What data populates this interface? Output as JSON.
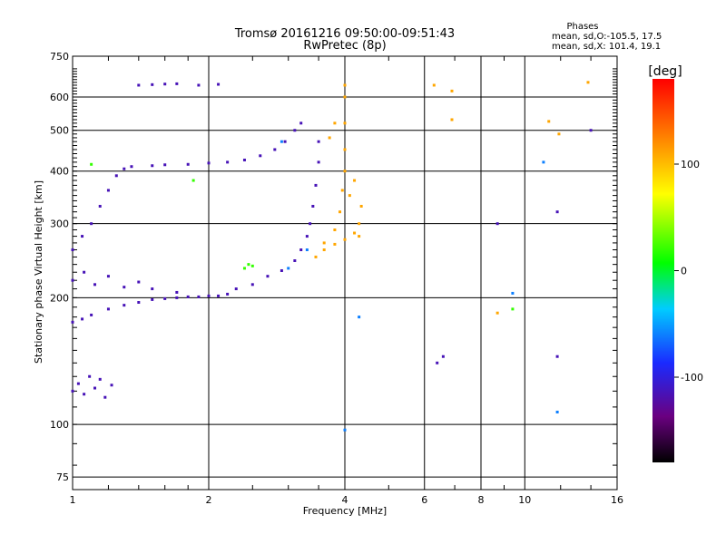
{
  "chart_data": {
    "type": "scatter",
    "title": "Tromsø 20161216 09:50:00-09:51:43",
    "subtitle": "RwPretec (8p)",
    "xlabel": "Frequency [MHz]",
    "ylabel": "Stationary phase Virtual Height [km]",
    "xscale": "log",
    "yscale": "log",
    "xlim": [
      1,
      16
    ],
    "ylim": [
      70,
      750
    ],
    "x_ticks": [
      1,
      2,
      4,
      6,
      8,
      10,
      16
    ],
    "y_ticks": [
      75,
      100,
      200,
      300,
      400,
      500,
      600,
      750
    ],
    "grid": true,
    "legend": {
      "title": "Phases",
      "lines": [
        "mean, sd,O:-105.5, 17.5",
        "mean, sd,X: 101.4, 19.1"
      ]
    },
    "colorbar": {
      "label": "[deg]",
      "range": [
        -180,
        180
      ],
      "ticks": [
        100,
        0,
        -100
      ],
      "colormap": "rainbow"
    },
    "series": [
      {
        "phase_deg": -115,
        "points": [
          [
            1.0,
            120
          ],
          [
            1.03,
            125
          ],
          [
            1.06,
            118
          ],
          [
            1.09,
            130
          ],
          [
            1.12,
            122
          ],
          [
            1.15,
            128
          ],
          [
            1.18,
            116
          ],
          [
            1.22,
            124
          ],
          [
            1.0,
            175
          ],
          [
            1.05,
            178
          ],
          [
            1.1,
            182
          ],
          [
            1.2,
            188
          ],
          [
            1.3,
            192
          ],
          [
            1.4,
            195
          ],
          [
            1.5,
            198
          ],
          [
            1.6,
            199
          ],
          [
            1.7,
            200
          ],
          [
            1.8,
            201
          ],
          [
            1.9,
            201
          ],
          [
            2.0,
            202
          ],
          [
            2.1,
            202
          ],
          [
            2.2,
            204
          ],
          [
            1.0,
            220
          ],
          [
            1.06,
            230
          ],
          [
            1.12,
            215
          ],
          [
            1.2,
            225
          ],
          [
            1.3,
            212
          ],
          [
            1.4,
            218
          ],
          [
            1.5,
            210
          ],
          [
            1.7,
            206
          ],
          [
            1.0,
            260
          ],
          [
            1.05,
            280
          ],
          [
            1.1,
            300
          ],
          [
            1.15,
            330
          ],
          [
            1.2,
            360
          ],
          [
            1.25,
            390
          ],
          [
            1.3,
            405
          ],
          [
            1.35,
            410
          ],
          [
            1.5,
            412
          ],
          [
            1.6,
            414
          ],
          [
            1.8,
            415
          ],
          [
            2.0,
            418
          ],
          [
            2.2,
            420
          ],
          [
            1.4,
            640
          ],
          [
            1.5,
            642
          ],
          [
            1.6,
            644
          ],
          [
            1.7,
            645
          ],
          [
            1.9,
            640
          ],
          [
            2.1,
            643
          ],
          [
            2.3,
            210
          ],
          [
            2.5,
            215
          ],
          [
            2.7,
            225
          ],
          [
            2.9,
            232
          ],
          [
            3.1,
            245
          ],
          [
            3.2,
            260
          ],
          [
            3.3,
            280
          ],
          [
            3.35,
            300
          ],
          [
            3.4,
            330
          ],
          [
            3.45,
            370
          ],
          [
            3.5,
            420
          ],
          [
            3.5,
            470
          ],
          [
            2.4,
            425
          ],
          [
            2.6,
            435
          ],
          [
            2.8,
            450
          ],
          [
            2.95,
            470
          ],
          [
            3.1,
            500
          ],
          [
            3.2,
            520
          ],
          [
            6.4,
            140
          ],
          [
            6.6,
            145
          ],
          [
            8.7,
            300
          ],
          [
            11.8,
            145
          ],
          [
            11.8,
            320
          ],
          [
            14.0,
            500
          ]
        ]
      },
      {
        "phase_deg": 110,
        "points": [
          [
            3.45,
            250
          ],
          [
            3.6,
            260
          ],
          [
            3.8,
            268
          ],
          [
            4.0,
            275
          ],
          [
            4.2,
            285
          ],
          [
            4.3,
            300
          ],
          [
            4.35,
            330
          ],
          [
            3.6,
            270
          ],
          [
            3.8,
            290
          ],
          [
            3.9,
            320
          ],
          [
            3.95,
            360
          ],
          [
            4.0,
            400
          ],
          [
            4.0,
            450
          ],
          [
            4.0,
            520
          ],
          [
            4.0,
            600
          ],
          [
            4.0,
            640
          ],
          [
            3.7,
            480
          ],
          [
            3.8,
            520
          ],
          [
            4.1,
            350
          ],
          [
            4.2,
            380
          ],
          [
            4.3,
            280
          ],
          [
            6.3,
            640
          ],
          [
            6.9,
            620
          ],
          [
            6.9,
            530
          ],
          [
            11.3,
            525
          ],
          [
            11.9,
            490
          ],
          [
            13.8,
            650
          ],
          [
            8.7,
            184
          ]
        ]
      },
      {
        "phase_deg": 20,
        "points": [
          [
            2.4,
            235
          ],
          [
            2.45,
            240
          ],
          [
            2.5,
            238
          ],
          [
            1.85,
            380
          ],
          [
            1.1,
            415
          ],
          [
            9.4,
            188
          ]
        ]
      },
      {
        "phase_deg": -60,
        "points": [
          [
            3.0,
            235
          ],
          [
            3.3,
            260
          ],
          [
            2.9,
            470
          ],
          [
            4.0,
            97
          ],
          [
            4.3,
            180
          ],
          [
            9.4,
            205
          ],
          [
            11.0,
            420
          ],
          [
            11.8,
            107
          ]
        ]
      }
    ]
  }
}
